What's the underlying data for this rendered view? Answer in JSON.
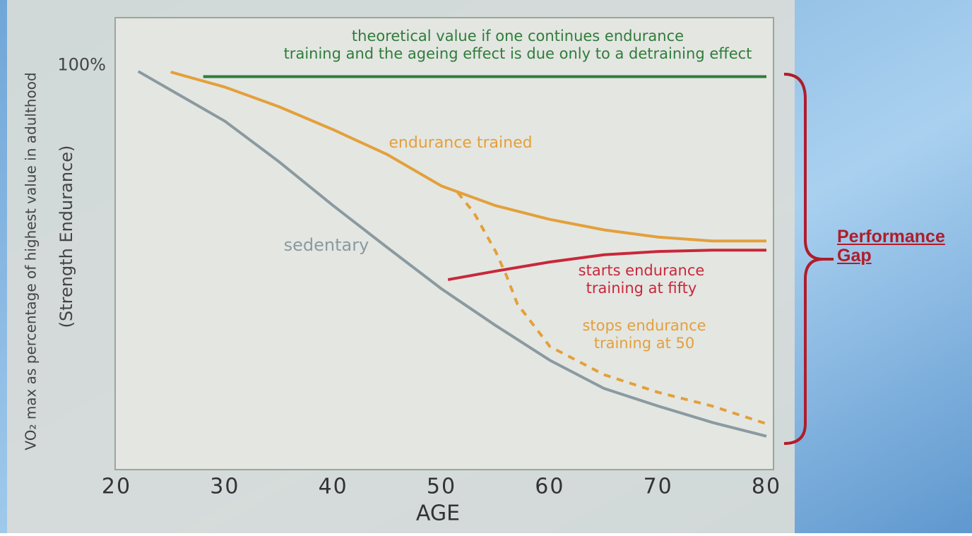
{
  "chart_data": {
    "type": "line",
    "xlabel": "AGE",
    "ylabel": "VO₂ max as percentage of highest value in adulthood",
    "ylabel2": "(Strength Endurance)",
    "xlim": [
      20,
      80
    ],
    "xticks": [
      20,
      30,
      40,
      50,
      60,
      70,
      80
    ],
    "ylim": [
      40,
      109
    ],
    "yticks": [
      {
        "value": 100,
        "label": "100%"
      }
    ],
    "series": [
      {
        "name": "sedentary",
        "color": "#8a9aa0",
        "style": "solid",
        "x": [
          22,
          30,
          35,
          40,
          45,
          50,
          55,
          60,
          65,
          70,
          75,
          80
        ],
        "values": [
          100.8,
          93.2,
          87,
          80.3,
          73.9,
          67.6,
          62,
          56.7,
          52.4,
          49.7,
          47.2,
          45.1
        ]
      },
      {
        "name": "endurance trained",
        "color": "#e3a03a",
        "style": "solid",
        "x": [
          25,
          30,
          35,
          40,
          45,
          50,
          55,
          60,
          65,
          70,
          75,
          80
        ],
        "values": [
          100.7,
          98.4,
          95.4,
          91.9,
          88.1,
          83.3,
          80.3,
          78.2,
          76.6,
          75.5,
          74.9,
          74.9
        ]
      },
      {
        "name": "theoretical value if one continues endurance training and the ageing effect is due only to a detraining effect",
        "color": "#2e7d3a",
        "style": "solid",
        "x": [
          28,
          80
        ],
        "values": [
          100,
          100
        ]
      },
      {
        "name": "starts endurance training at fifty",
        "color": "#c8283a",
        "style": "solid",
        "x": [
          50.6,
          55,
          60,
          65,
          70,
          75,
          80
        ],
        "values": [
          69,
          70.3,
          71.7,
          72.8,
          73.3,
          73.5,
          73.5
        ]
      },
      {
        "name": "stops endurance training at 50",
        "color": "#e3a03a",
        "style": "dashed",
        "x": [
          51.5,
          53,
          55,
          56,
          57,
          60,
          65,
          70,
          75,
          80
        ],
        "values": [
          82.3,
          79.2,
          73.3,
          69.6,
          65.3,
          58.8,
          54.5,
          51.8,
          49.7,
          47
        ]
      }
    ],
    "annotations": [
      "Performance Gap"
    ]
  }
}
